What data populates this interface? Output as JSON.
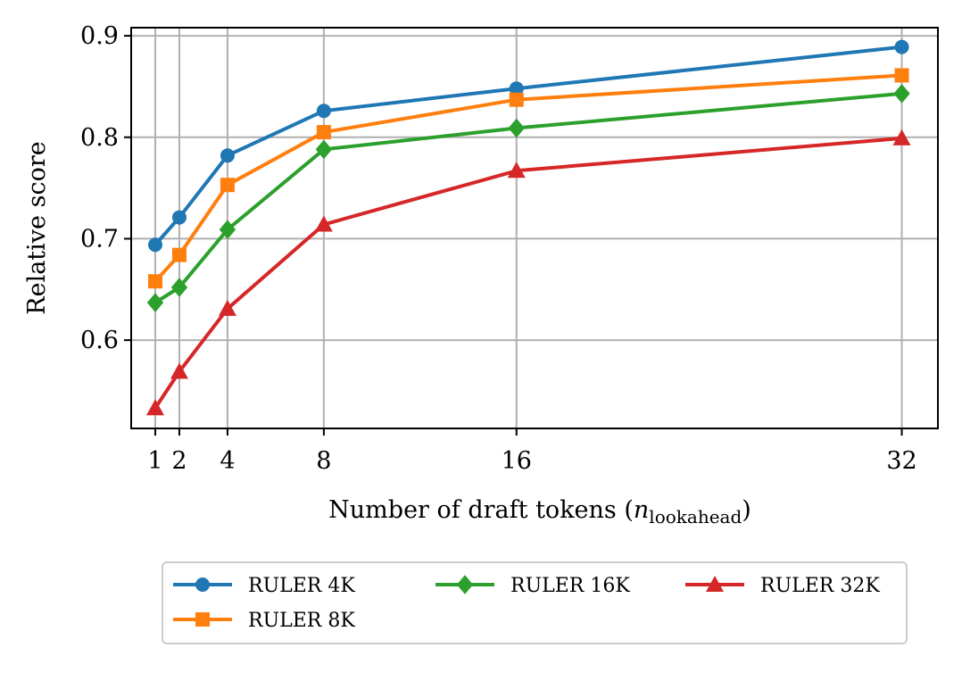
{
  "chart_data": {
    "type": "line",
    "xlabel": "Number of draft tokens",
    "xlabel_math": {
      "base": "n",
      "subscript": "lookahead"
    },
    "ylabel": "Relative score",
    "x": [
      1,
      2,
      4,
      8,
      16,
      32
    ],
    "x_tick_labels": [
      "1",
      "2",
      "4",
      "8",
      "16",
      "32"
    ],
    "y_ticks": [
      0.6,
      0.7,
      0.8,
      0.9
    ],
    "y_tick_labels": [
      "0.6",
      "0.7",
      "0.8",
      "0.9"
    ],
    "xlim": [
      0.0,
      33.5
    ],
    "ylim": [
      0.513,
      0.908
    ],
    "grid": true,
    "legend_position": "bottom",
    "series": [
      {
        "name": "RULER 4K",
        "color": "#1f77b4",
        "marker": "circle",
        "values": [
          0.694,
          0.721,
          0.782,
          0.826,
          0.848,
          0.889
        ]
      },
      {
        "name": "RULER 8K",
        "color": "#ff7f0e",
        "marker": "square",
        "values": [
          0.658,
          0.684,
          0.753,
          0.805,
          0.837,
          0.861
        ]
      },
      {
        "name": "RULER 16K",
        "color": "#2ca02c",
        "marker": "diamond",
        "values": [
          0.637,
          0.652,
          0.709,
          0.788,
          0.809,
          0.843
        ]
      },
      {
        "name": "RULER 32K",
        "color": "#d62728",
        "marker": "triangle",
        "values": [
          0.533,
          0.569,
          0.631,
          0.714,
          0.767,
          0.799
        ]
      }
    ]
  }
}
